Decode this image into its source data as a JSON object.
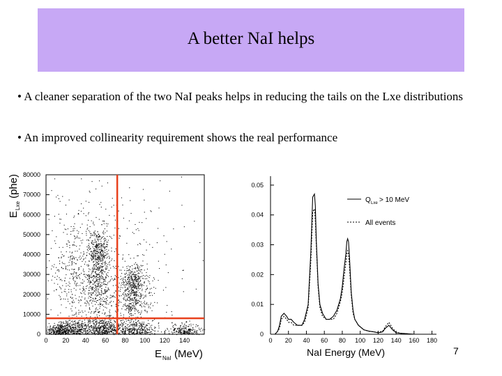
{
  "slide": {
    "title": "A better NaI helps",
    "bullets": [
      "• A cleaner separation of the two NaI peaks helps in reducing the tails on the Lxe distributions",
      "• An improved collinearity requirement shows the real performance"
    ],
    "page_number": "7"
  },
  "chart_data": [
    {
      "type": "scatter",
      "xlabel": "E",
      "xlabel_sub": "NaI",
      "xlabel_unit": "(MeV)",
      "ylabel": "E",
      "ylabel_sub": "Lxe",
      "ylabel_unit": "(phe)",
      "xlim": [
        0,
        160
      ],
      "ylim": [
        0,
        80000
      ],
      "x_ticks": [
        "0",
        "20",
        "40",
        "60",
        "80",
        "100",
        "120",
        "140"
      ],
      "y_ticks": [
        "0",
        "10000",
        "20000",
        "30000",
        "40000",
        "50000",
        "60000",
        "70000",
        "80000"
      ],
      "cut_lines": {
        "vertical_x": 72,
        "horizontal_y": 8000,
        "color": "#e8401c"
      },
      "clusters": [
        {
          "x": 12,
          "y": 2000
        },
        {
          "x": 27,
          "y": 2500
        },
        {
          "x": 55,
          "y": 3000
        },
        {
          "x": 90,
          "y": 2500
        },
        {
          "x": 140,
          "y": 2000
        },
        {
          "x": 53,
          "y": 42000
        },
        {
          "x": 53,
          "y": 25000
        },
        {
          "x": 88,
          "y": 27000
        },
        {
          "x": 88,
          "y": 17000
        },
        {
          "x": 30,
          "y": 30000
        }
      ]
    },
    {
      "type": "line",
      "xlabel": "NaI Energy (MeV)",
      "ylabel": "",
      "xlim": [
        0,
        160
      ],
      "ylim": [
        0,
        0.05
      ],
      "x_ticks": [
        "0",
        "20",
        "40",
        "60",
        "80",
        "100",
        "120",
        "140",
        "160",
        "180"
      ],
      "y_ticks": [
        "0",
        "0.01",
        "0.02",
        "0.03",
        "0.04",
        "0.05"
      ],
      "legend": [
        {
          "main": "Q",
          "sub": "Lxe",
          "rest": " > 10 MeV",
          "style": "solid"
        },
        {
          "main": "All events",
          "sub": "",
          "rest": "",
          "style": "dashed"
        }
      ],
      "series": [
        {
          "style": "solid",
          "x": [
            2,
            5,
            8,
            10,
            12,
            15,
            18,
            20,
            23,
            26,
            30,
            35,
            38,
            42,
            45,
            47,
            49,
            50,
            51,
            53,
            55,
            58,
            62,
            66,
            70,
            74,
            78,
            80,
            82,
            84,
            85,
            86,
            87,
            88,
            89,
            90,
            92,
            94,
            98,
            104,
            110,
            115,
            120,
            125,
            128,
            132,
            136,
            140,
            145,
            150,
            155,
            160
          ],
          "y": [
            0,
            0,
            0.001,
            0.003,
            0.006,
            0.007,
            0.006,
            0.005,
            0.005,
            0.004,
            0.003,
            0.003,
            0.005,
            0.01,
            0.028,
            0.046,
            0.047,
            0.043,
            0.032,
            0.017,
            0.01,
            0.007,
            0.005,
            0.005,
            0.006,
            0.008,
            0.012,
            0.016,
            0.022,
            0.027,
            0.031,
            0.032,
            0.031,
            0.026,
            0.02,
            0.014,
            0.008,
            0.005,
            0.003,
            0.0015,
            0.001,
            0.0008,
            0.0005,
            0.0008,
            0.002,
            0.003,
            0.0015,
            0.0005,
            0.0003,
            0.0002,
            0.0001,
            0
          ]
        },
        {
          "style": "dashed",
          "x": [
            2,
            5,
            8,
            10,
            12,
            15,
            18,
            20,
            23,
            26,
            30,
            35,
            38,
            42,
            45,
            47,
            49,
            50,
            51,
            53,
            55,
            58,
            62,
            66,
            70,
            74,
            78,
            80,
            82,
            84,
            85,
            86,
            87,
            88,
            89,
            90,
            92,
            94,
            98,
            104,
            110,
            115,
            120,
            125,
            128,
            132,
            136,
            140,
            145,
            150,
            155,
            160
          ],
          "y": [
            0,
            0,
            0.001,
            0.002,
            0.005,
            0.006,
            0.005,
            0.004,
            0.004,
            0.003,
            0.003,
            0.003,
            0.004,
            0.009,
            0.025,
            0.041,
            0.042,
            0.038,
            0.03,
            0.016,
            0.009,
            0.006,
            0.005,
            0.005,
            0.005,
            0.007,
            0.011,
            0.014,
            0.019,
            0.024,
            0.027,
            0.028,
            0.027,
            0.023,
            0.018,
            0.013,
            0.007,
            0.005,
            0.003,
            0.0015,
            0.001,
            0.0008,
            0.0006,
            0.001,
            0.0025,
            0.004,
            0.002,
            0.0007,
            0.0003,
            0.0002,
            0.0001,
            0
          ]
        }
      ]
    }
  ]
}
